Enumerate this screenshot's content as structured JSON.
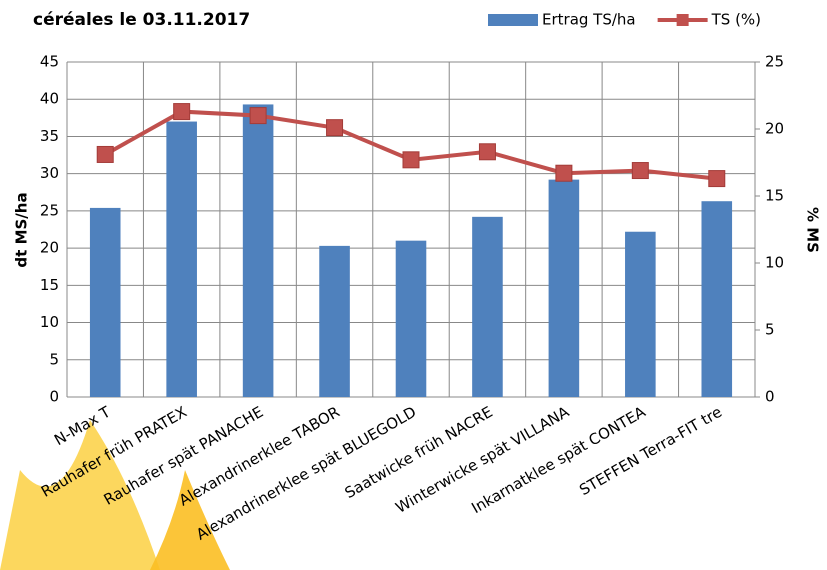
{
  "chart_data": {
    "type": "bar-line",
    "title": "céréales le 03.11.2017",
    "y_label": "dt MS/ha",
    "y2_label": "% MS",
    "categories": [
      "N-Max T",
      "Rauhafer früh PRATEX",
      "Rauhafer spät PANACHE",
      "Alexandrinerklee TABOR",
      "Alexandrinerklee spät BLUEGOLD",
      "Saatwicke früh NACRE",
      "Winterwicke spät VILLANA",
      "Inkarnatklee spät CONTEA",
      "STEFFEN Terra-FIT tre"
    ],
    "series": [
      {
        "name": "Ertrag TS/ha",
        "kind": "bar",
        "color": "#4f81bd",
        "values": [
          25.4,
          37,
          39.3,
          20.3,
          21,
          24.2,
          29.2,
          22.2,
          26.3
        ]
      },
      {
        "name": "TS (%)",
        "kind": "line",
        "axis": "y2",
        "color": "#c0504d",
        "values": [
          18.1,
          21.3,
          21.0,
          20.1,
          17.7,
          18.3,
          16.7,
          16.9,
          16.3
        ]
      }
    ],
    "ylim": [
      0,
      45
    ],
    "yticks": [
      0,
      5,
      10,
      15,
      20,
      25,
      30,
      35,
      40,
      45
    ],
    "y2lim": [
      0,
      25
    ],
    "y2ticks": [
      0,
      5,
      10,
      15,
      20,
      25
    ],
    "grid": true,
    "legend": "top-right"
  }
}
